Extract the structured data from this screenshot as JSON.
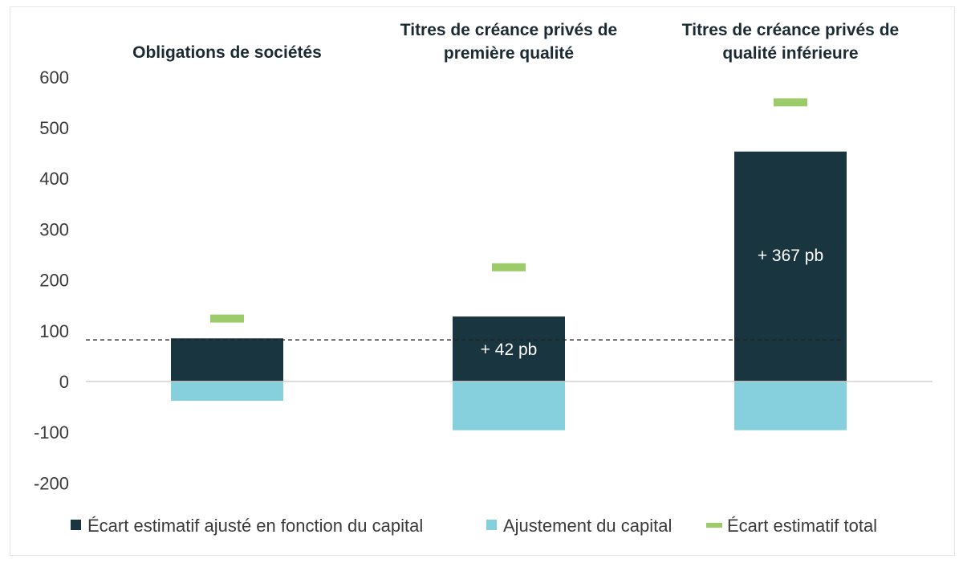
{
  "chart_data": {
    "type": "bar",
    "categories": [
      "Obligations de sociétés",
      "Titres de créance privés de première qualité",
      "Titres de créance privés de qualité inférieure"
    ],
    "category_title_lines": [
      [
        "Obligations de sociétés"
      ],
      [
        "Titres de créance privés de",
        "première qualité"
      ],
      [
        "Titres de créance privés de",
        "qualité inférieure"
      ]
    ],
    "series": [
      {
        "name": "Écart estimatif ajusté en fonction du capital",
        "type": "bar",
        "color": "#19353f",
        "values": [
          85,
          128,
          453
        ]
      },
      {
        "name": "Ajustement du capital",
        "type": "bar",
        "color": "#86d0dd",
        "values": [
          -38,
          -96,
          -96
        ]
      },
      {
        "name": "Écart estimatif total",
        "type": "marker",
        "color": "#9ccc6a",
        "values": [
          124,
          225,
          550
        ]
      }
    ],
    "bar_labels": [
      "",
      "+ 42 pb",
      "+ 367 pb"
    ],
    "reference_line": {
      "value": 82,
      "style": "dashed"
    },
    "ylim": [
      -200,
      600
    ],
    "yticks": [
      "600",
      "500",
      "400",
      "300",
      "200",
      "100",
      "0",
      "-100",
      "-200"
    ],
    "ytick_values": [
      600,
      500,
      400,
      300,
      200,
      100,
      0,
      -100,
      -200
    ],
    "legend_position": "bottom",
    "grid": false
  }
}
